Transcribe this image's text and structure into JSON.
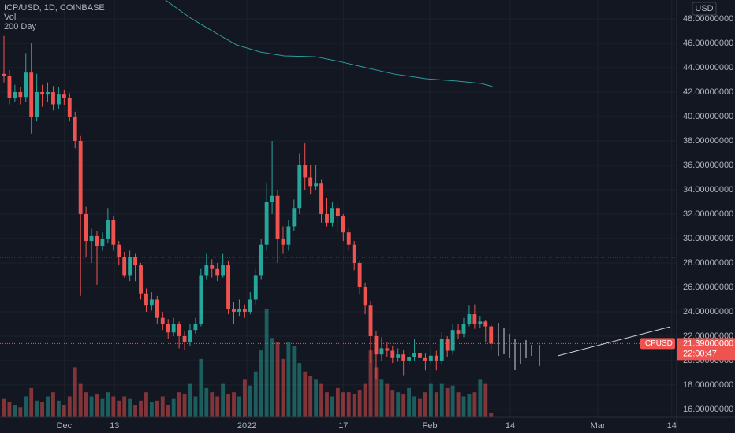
{
  "chart_data": {
    "type": "candlestick",
    "title": "ICP/USD, 1D, COINBASE",
    "volume_label": "Vol",
    "ma_label": "200 Day",
    "currency": "USD",
    "symbol_tag": "ICPUSD",
    "countdown": "22:00:47",
    "last_price": {
      "value": 21.39,
      "label": "21.39000000"
    },
    "level_line": 28.45,
    "up_color": "#26a69a",
    "down_color": "#ef5350",
    "ma_color": "#2a9d9f",
    "grid": true,
    "xlim": [
      -0.72,
      122.9
    ],
    "xticks": [
      {
        "value": 11,
        "label": "Dec"
      },
      {
        "value": 20.2,
        "label": "13"
      },
      {
        "value": 44.4,
        "label": "2022"
      },
      {
        "value": 62,
        "label": "17"
      },
      {
        "value": 77.8,
        "label": "Feb"
      },
      {
        "value": 92.5,
        "label": "14"
      },
      {
        "value": 108.5,
        "label": "Mar"
      },
      {
        "value": 122,
        "label": "14"
      }
    ],
    "ylim": [
      15.35,
      49.55
    ],
    "yticks": [
      {
        "value": 16,
        "label": "16.00000000"
      },
      {
        "value": 18,
        "label": "18.00000000"
      },
      {
        "value": 20,
        "label": "20.00000000"
      },
      {
        "value": 22,
        "label": "22.00000000"
      },
      {
        "value": 24,
        "label": "24.00000000"
      },
      {
        "value": 26,
        "label": "26.00000000"
      },
      {
        "value": 28,
        "label": "28.00000000"
      },
      {
        "value": 30,
        "label": "30.00000000"
      },
      {
        "value": 32,
        "label": "32.00000000"
      },
      {
        "value": 34,
        "label": "34.00000000"
      },
      {
        "value": 36,
        "label": "36.00000000"
      },
      {
        "value": 38,
        "label": "38.00000000"
      },
      {
        "value": 40,
        "label": "40.00000000"
      },
      {
        "value": 42,
        "label": "42.00000000"
      },
      {
        "value": 44,
        "label": "44.00000000"
      },
      {
        "value": 46,
        "label": "46.00000000"
      },
      {
        "value": 48,
        "label": "48.00000000"
      }
    ],
    "vol_lim": [
      0,
      500
    ],
    "opens": [
      43.5,
      43.3,
      41.5,
      42.0,
      41.6,
      43.6,
      40.0,
      42.0,
      41.8,
      42.0,
      41.0,
      41.8,
      41.5,
      40.0,
      38.0,
      32.0,
      29.8,
      30.2,
      29.4,
      30.0,
      31.5,
      29.5,
      28.5,
      27.0,
      28.5,
      27.8,
      25.5,
      24.5,
      25.0,
      23.5,
      23.0,
      22.3,
      23.0,
      22.0,
      21.5,
      22.5,
      23.0,
      27.0,
      27.8,
      27.5,
      27.0,
      27.8,
      24.2,
      24.0,
      24.2,
      24.0,
      25.0,
      27.0,
      29.5,
      33.0,
      33.5,
      30.0,
      29.5,
      31.0,
      32.5,
      36.0,
      35.0,
      34.3,
      34.5,
      32.0,
      31.3,
      32.5,
      31.8,
      30.5,
      29.5,
      28.0,
      26.0,
      24.5,
      22.0,
      20.5,
      21.0,
      20.8,
      20.2,
      20.5,
      20.0,
      20.3,
      20.6,
      20.2,
      20.0,
      20.4,
      20.0,
      21.8,
      20.8,
      22.5,
      22.2,
      23.0,
      23.8,
      23.0,
      23.2,
      22.8
    ],
    "highs": [
      46.6,
      43.8,
      42.6,
      42.4,
      45.2,
      46.0,
      43.5,
      42.6,
      42.8,
      42.5,
      42.4,
      42.2,
      41.9,
      40.4,
      38.4,
      32.6,
      30.8,
      30.6,
      30.5,
      32.5,
      31.8,
      29.8,
      28.9,
      29.0,
      28.8,
      28.0,
      25.9,
      25.6,
      25.3,
      24.0,
      23.4,
      23.5,
      23.2,
      22.4,
      23.0,
      23.5,
      27.5,
      28.8,
      28.3,
      28.0,
      28.8,
      28.2,
      24.8,
      25.0,
      24.6,
      25.6,
      27.5,
      30.0,
      34.5,
      38.0,
      34.0,
      31.0,
      31.5,
      33.2,
      37.0,
      37.8,
      36.0,
      36.0,
      34.8,
      33.3,
      33.0,
      32.8,
      32.0,
      30.9,
      29.8,
      28.2,
      26.4,
      24.9,
      22.4,
      21.9,
      21.5,
      21.2,
      21.0,
      20.9,
      20.8,
      21.8,
      21.0,
      20.6,
      21.0,
      20.8,
      22.3,
      22.0,
      23.0,
      23.0,
      23.5,
      24.5,
      24.6,
      23.6,
      23.3,
      23.0
    ],
    "lows": [
      42.8,
      41.0,
      41.2,
      41.0,
      41.2,
      38.6,
      39.6,
      40.8,
      41.2,
      40.5,
      40.6,
      40.9,
      39.6,
      37.4,
      25.3,
      28.5,
      28.0,
      26.2,
      29.0,
      29.6,
      29.0,
      27.8,
      26.8,
      26.5,
      26.5,
      25.0,
      24.0,
      24.1,
      23.0,
      22.5,
      21.8,
      22.0,
      21.0,
      20.9,
      21.2,
      22.2,
      22.8,
      26.6,
      26.8,
      26.5,
      26.8,
      23.8,
      23.0,
      23.6,
      23.5,
      23.8,
      24.6,
      26.6,
      29.0,
      32.0,
      28.0,
      28.8,
      29.0,
      30.6,
      32.0,
      34.0,
      33.6,
      34.0,
      31.3,
      31.0,
      31.0,
      30.5,
      29.8,
      29.0,
      27.4,
      25.4,
      23.8,
      19.8,
      18.5,
      20.0,
      20.3,
      19.8,
      19.9,
      18.8,
      19.6,
      20.0,
      19.6,
      19.2,
      19.6,
      19.2,
      19.7,
      20.3,
      20.5,
      21.8,
      21.9,
      22.8,
      22.6,
      22.7,
      21.5,
      20.9
    ],
    "closes": [
      43.3,
      41.5,
      42.0,
      41.6,
      43.6,
      40.0,
      42.0,
      41.8,
      42.0,
      41.0,
      41.8,
      41.5,
      40.0,
      38.0,
      32.0,
      29.8,
      30.2,
      29.4,
      30.0,
      31.5,
      29.5,
      28.5,
      27.0,
      28.5,
      27.8,
      25.5,
      24.5,
      25.0,
      23.5,
      23.0,
      22.3,
      23.0,
      22.0,
      21.5,
      22.5,
      23.0,
      27.0,
      27.8,
      27.5,
      27.0,
      27.8,
      24.2,
      24.0,
      24.2,
      24.0,
      25.0,
      27.0,
      29.5,
      33.0,
      33.5,
      30.0,
      29.5,
      31.0,
      32.5,
      36.0,
      35.0,
      34.3,
      34.5,
      32.0,
      31.3,
      32.5,
      31.8,
      30.5,
      29.5,
      28.0,
      26.0,
      24.5,
      22.0,
      20.5,
      21.0,
      20.8,
      20.2,
      20.5,
      20.0,
      20.3,
      20.6,
      20.2,
      20.0,
      20.4,
      20.0,
      21.8,
      20.8,
      22.5,
      22.2,
      23.0,
      23.8,
      23.0,
      23.2,
      22.8,
      21.39
    ],
    "volumes": [
      22,
      18,
      15,
      12,
      25,
      35,
      20,
      18,
      25,
      30,
      20,
      15,
      25,
      60,
      40,
      30,
      25,
      28,
      22,
      30,
      25,
      20,
      25,
      22,
      15,
      20,
      30,
      18,
      20,
      25,
      15,
      22,
      30,
      28,
      40,
      25,
      70,
      35,
      30,
      25,
      40,
      28,
      30,
      25,
      45,
      38,
      55,
      80,
      130,
      95,
      90,
      70,
      90,
      85,
      65,
      55,
      50,
      45,
      40,
      30,
      25,
      35,
      30,
      30,
      28,
      32,
      40,
      80,
      60,
      45,
      40,
      32,
      30,
      28,
      35,
      25,
      22,
      30,
      40,
      30,
      40,
      35,
      38,
      30,
      25,
      28,
      30,
      45,
      40,
      5
    ],
    "ma": {
      "x": [
        29.5,
        33.9,
        38.2,
        42.5,
        46.8,
        51.2,
        56.9,
        61.2,
        65.6,
        71.3,
        77.1,
        82.8,
        87.2,
        89.3
      ],
      "values": [
        49.55,
        48.13,
        46.97,
        45.87,
        45.29,
        44.97,
        44.9,
        44.52,
        44.06,
        43.48,
        43.1,
        42.9,
        42.71,
        42.45
      ]
    }
  }
}
